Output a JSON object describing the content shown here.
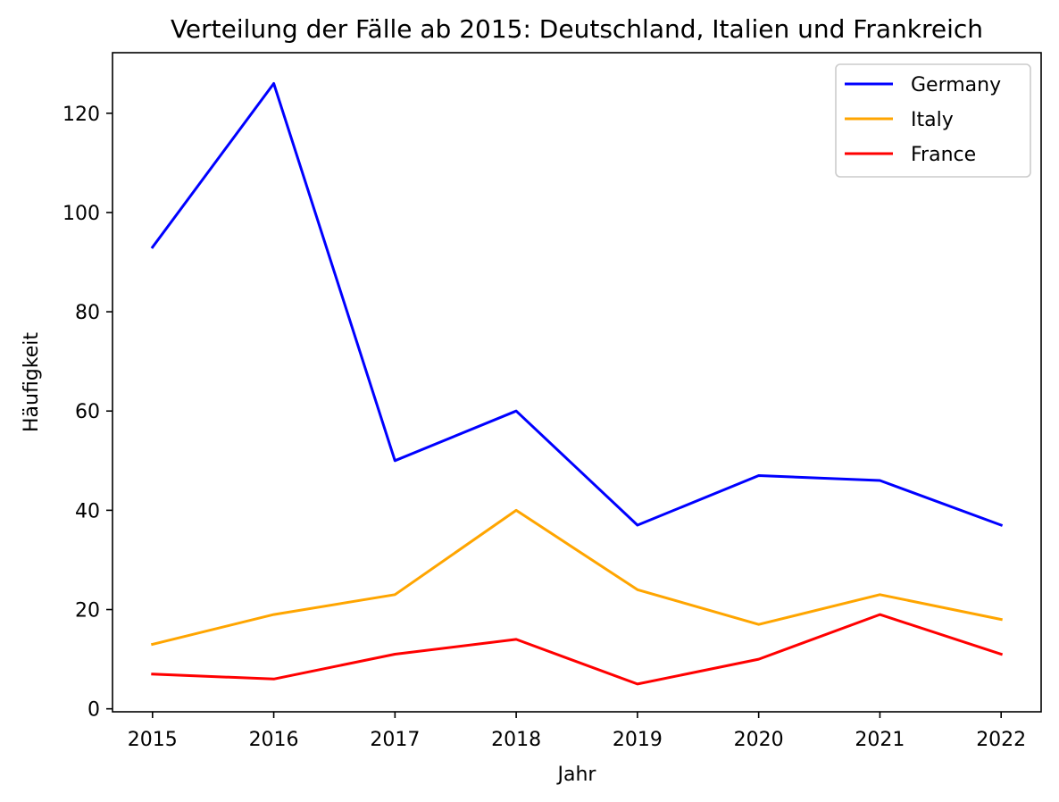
{
  "chart_data": {
    "type": "line",
    "title": "Verteilung der Fälle ab 2015: Deutschland, Italien und Frankreich",
    "xlabel": "Jahr",
    "ylabel": "Häufigkeit",
    "x": [
      "2015",
      "2016",
      "2017",
      "2018",
      "2019",
      "2020",
      "2021",
      "2022"
    ],
    "xlim": [
      2014.67,
      2022.33
    ],
    "ylim": [
      -0.6,
      132.2
    ],
    "yticks": [
      0,
      20,
      40,
      60,
      80,
      100,
      120
    ],
    "grid": false,
    "legend_position": "top-right",
    "series": [
      {
        "name": "Germany",
        "color": "#0000ff",
        "values": [
          93,
          126,
          50,
          60,
          37,
          47,
          46,
          37
        ]
      },
      {
        "name": "Italy",
        "color": "#ffa500",
        "values": [
          13,
          19,
          23,
          40,
          24,
          17,
          23,
          18
        ]
      },
      {
        "name": "France",
        "color": "#ff0000",
        "values": [
          7,
          6,
          11,
          14,
          5,
          10,
          19,
          11
        ]
      }
    ]
  }
}
